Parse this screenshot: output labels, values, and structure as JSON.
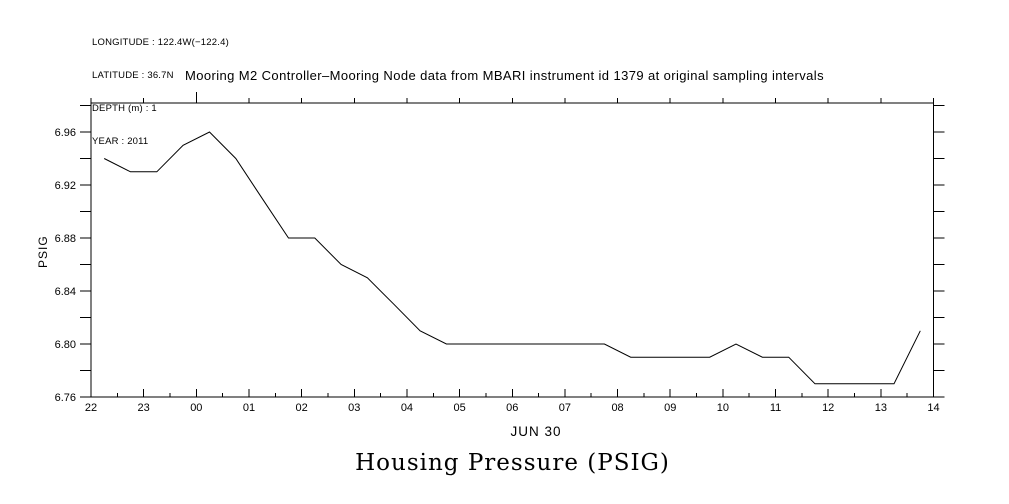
{
  "header": {
    "longitude": "LONGITUDE : 122.4W(−122.4)",
    "latitude": "LATITUDE : 36.7N",
    "depth": "DEPTH (m) : 1",
    "year": "YEAR : 2011"
  },
  "title": "Mooring M2 Controller–Mooring Node data from MBARI instrument id 1379 at original sampling intervals",
  "bottom_title": "Housing Pressure (PSIG)",
  "chart_data": {
    "type": "line",
    "title": "Mooring M2 Controller–Mooring Node data from MBARI instrument id 1379 at original sampling intervals",
    "xlabel": "JUN 30",
    "ylabel": "PSIG",
    "grid": false,
    "legend": null,
    "background_color": "#ffffff",
    "line_color": "#000000",
    "ylim": [
      6.76,
      6.98
    ],
    "y_tick_step": 0.02,
    "y_major_ticks": [
      {
        "value": 6.76,
        "label": "6.76"
      },
      {
        "value": 6.8,
        "label": "6.80"
      },
      {
        "value": 6.84,
        "label": "6.84"
      },
      {
        "value": 6.88,
        "label": "6.88"
      },
      {
        "value": 6.92,
        "label": "6.92"
      },
      {
        "value": 6.96,
        "label": "6.96"
      }
    ],
    "x_axis": {
      "span_hours": 16,
      "minor_tick_step_hours": 0.5,
      "tick_labels": [
        "22",
        "23",
        "00",
        "01",
        "02",
        "03",
        "04",
        "05",
        "06",
        "07",
        "08",
        "09",
        "10",
        "11",
        "12",
        "13",
        "14"
      ],
      "midnight_label": "00",
      "date_label": "JUN 30"
    },
    "series": [
      {
        "name": "Housing Pressure (PSIG)",
        "times": [
          "22:15",
          "22:45",
          "23:15",
          "23:45",
          "00:15",
          "00:45",
          "01:15",
          "01:45",
          "02:15",
          "02:45",
          "03:15",
          "03:45",
          "04:15",
          "04:45",
          "05:15",
          "05:45",
          "06:15",
          "06:45",
          "07:15",
          "07:45",
          "08:15",
          "08:45",
          "09:15",
          "09:45",
          "10:15",
          "10:45",
          "11:15",
          "11:45",
          "12:15",
          "12:45",
          "13:15",
          "13:45"
        ],
        "hours_since_2200": [
          0.25,
          0.75,
          1.25,
          1.75,
          2.25,
          2.75,
          3.25,
          3.75,
          4.25,
          4.75,
          5.25,
          5.75,
          6.25,
          6.75,
          7.25,
          7.75,
          8.25,
          8.75,
          9.25,
          9.75,
          10.25,
          10.75,
          11.25,
          11.75,
          12.25,
          12.75,
          13.25,
          13.75,
          14.25,
          14.75,
          15.25,
          15.75
        ],
        "values": [
          6.94,
          6.93,
          6.93,
          6.95,
          6.96,
          6.94,
          6.91,
          6.88,
          6.88,
          6.86,
          6.85,
          6.83,
          6.81,
          6.8,
          6.8,
          6.8,
          6.8,
          6.8,
          6.8,
          6.8,
          6.79,
          6.79,
          6.79,
          6.79,
          6.8,
          6.79,
          6.79,
          6.77,
          6.77,
          6.77,
          6.77,
          6.81
        ]
      }
    ]
  }
}
